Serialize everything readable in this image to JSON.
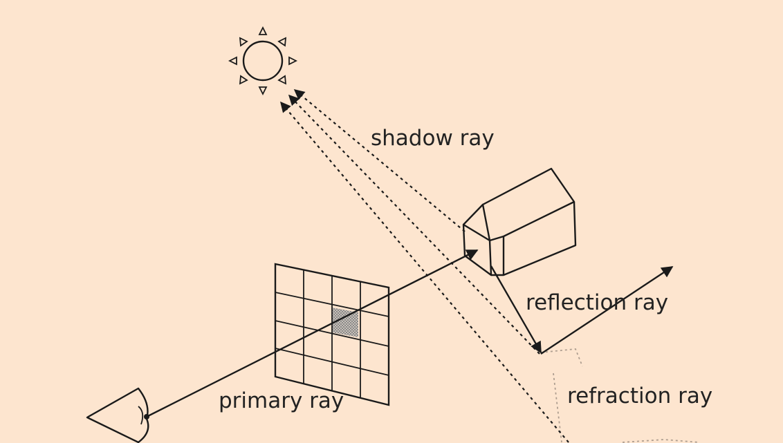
{
  "labels": {
    "shadow_ray": "shadow ray",
    "reflection_ray": "reflection ray",
    "primary_ray": "primary ray",
    "refraction_ray": "refraction ray"
  },
  "colors": {
    "background": "#fde5cf",
    "ink": "#1a1a1a",
    "shaded_pixel": "#9a9a9a"
  },
  "icons": {
    "light_source": "sun-icon",
    "viewer": "eye-icon",
    "scene_object": "house-icon",
    "image_plane": "pixel-grid"
  }
}
